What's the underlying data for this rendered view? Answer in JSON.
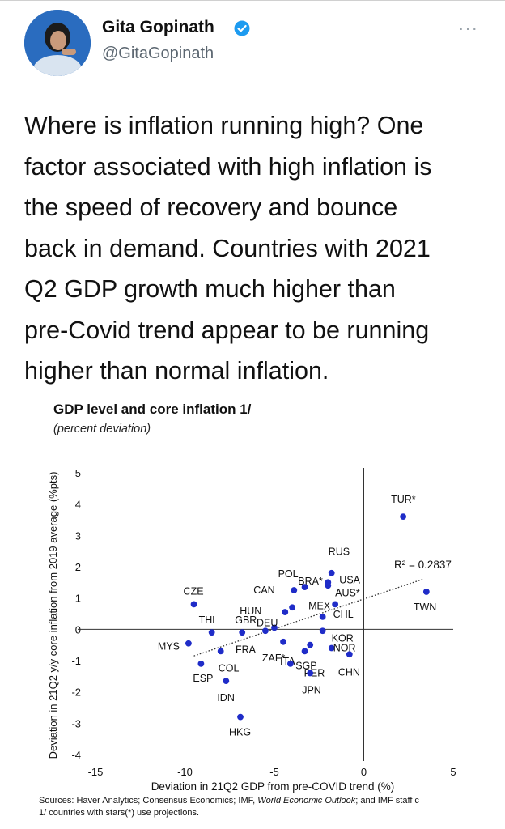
{
  "author": {
    "name": "Gita Gopinath",
    "handle": "@GitaGopinath"
  },
  "icons": {
    "verified": "verified-badge-icon",
    "more": "more-horizontal-icon",
    "avatar": "profile-photo"
  },
  "colors": {
    "verified": "#1d9bf0",
    "dot": "#1f2cc8",
    "text": "#111111",
    "handle": "#5b6670",
    "avatar_bg": "#1f5fa8"
  },
  "tweet": {
    "more_label": "···",
    "text": "Where is inflation running high? One\nfactor associated with high inflation is\nthe speed of recovery and bounce\nback in demand. Countries with 2021\nQ2 GDP growth much higher than\npre-Covid trend appear to be running\nhigher than normal inflation."
  },
  "chart_data": {
    "type": "scatter",
    "title": "GDP level and core inflation 1/",
    "subtitle": "(percent deviation)",
    "xlabel": "Deviation in 21Q2 GDP from pre-COVID trend (%)",
    "ylabel": "Deviation in 21Q2 y/y core inflation from 2019 average (%pts)",
    "xlim": [
      -15,
      5
    ],
    "ylim": [
      -4,
      5
    ],
    "xticks": [
      -15,
      -10,
      -5,
      0,
      5
    ],
    "yticks": [
      5,
      4,
      3,
      2,
      1,
      0,
      -1,
      -2,
      -3,
      -4
    ],
    "r2_label": "R² = 0.2837",
    "trendline": {
      "x": [
        -9.5,
        3.3
      ],
      "y": [
        -0.85,
        1.6
      ]
    },
    "points": [
      {
        "label": "TUR*",
        "x": 2.2,
        "y": 3.6
      },
      {
        "label": "TWN",
        "x": 3.5,
        "y": 1.2
      },
      {
        "label": "RUS",
        "x": -1.8,
        "y": 1.8
      },
      {
        "label": "USA",
        "x": -2.0,
        "y": 1.5
      },
      {
        "label": "BRA*",
        "x": -2.0,
        "y": 1.4
      },
      {
        "label": "AUS*",
        "x": -1.6,
        "y": 0.8
      },
      {
        "label": "CHL",
        "x": -2.3,
        "y": 0.4
      },
      {
        "label": "POL",
        "x": -3.3,
        "y": 1.35
      },
      {
        "label": "CAN",
        "x": -3.9,
        "y": 1.25
      },
      {
        "label": "HUN",
        "x": -4.4,
        "y": 0.55
      },
      {
        "label": "MEX",
        "x": -4.0,
        "y": 0.7
      },
      {
        "label": "CZE",
        "x": -9.5,
        "y": 0.8
      },
      {
        "label": "THL",
        "x": -8.5,
        "y": -0.1
      },
      {
        "label": "GBR",
        "x": -6.8,
        "y": -0.1
      },
      {
        "label": "DEU",
        "x": -5.0,
        "y": 0.05
      },
      {
        "label": "FRA",
        "x": -5.5,
        "y": -0.05
      },
      {
        "label": "KOR",
        "x": -2.3,
        "y": -0.05
      },
      {
        "label": "NOR",
        "x": -1.8,
        "y": -0.6
      },
      {
        "label": "CHN",
        "x": -0.8,
        "y": -0.8
      },
      {
        "label": "ITA",
        "x": -4.5,
        "y": -0.4
      },
      {
        "label": "SGP",
        "x": -3.0,
        "y": -0.5
      },
      {
        "label": "PER",
        "x": -3.3,
        "y": -0.7
      },
      {
        "label": "ZAF*",
        "x": -4.1,
        "y": -1.1
      },
      {
        "label": "JPN",
        "x": -3.0,
        "y": -1.4
      },
      {
        "label": "MYS",
        "x": -9.8,
        "y": -0.45
      },
      {
        "label": "ESP",
        "x": -9.1,
        "y": -1.1
      },
      {
        "label": "COL",
        "x": -8.0,
        "y": -0.7
      },
      {
        "label": "IDN",
        "x": -7.7,
        "y": -1.65
      },
      {
        "label": "HKG",
        "x": -6.9,
        "y": -2.8
      }
    ]
  },
  "sources": {
    "line1_a": "Sources: Haver Analytics; Consensus Economics; IMF, ",
    "line1_b": "World Economic Outlook",
    "line1_c": "; and IMF staff c",
    "line2": "1/ countries with stars(*) use projections."
  }
}
